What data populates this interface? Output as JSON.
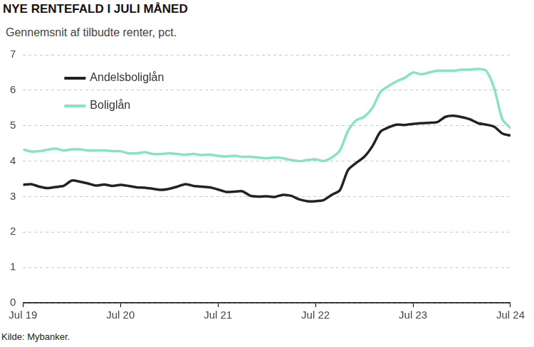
{
  "chart_data": {
    "type": "line",
    "title": "NYE RENTEFALD I JULI MÅNED",
    "subtitle": "Gennemsnit af tilbudte renter, pct.",
    "source": "Kilde: Mybanker.",
    "categories": [
      "Jul 19",
      null,
      null,
      null,
      null,
      null,
      null,
      null,
      null,
      null,
      null,
      null,
      "Jul 20",
      null,
      null,
      null,
      null,
      null,
      null,
      null,
      null,
      null,
      null,
      null,
      "Jul 21",
      null,
      null,
      null,
      null,
      null,
      null,
      null,
      null,
      null,
      null,
      null,
      "Jul 22",
      null,
      null,
      null,
      null,
      null,
      null,
      null,
      null,
      null,
      null,
      null,
      "Jul 23",
      null,
      null,
      null,
      null,
      null,
      null,
      null,
      null,
      null,
      null,
      null,
      "Jul 24"
    ],
    "series": [
      {
        "name": "Andelsboliglån",
        "color": "#222222",
        "values": [
          3.33,
          3.35,
          3.28,
          3.24,
          3.27,
          3.3,
          3.45,
          3.42,
          3.37,
          3.31,
          3.34,
          3.3,
          3.33,
          3.3,
          3.26,
          3.25,
          3.22,
          3.19,
          3.22,
          3.28,
          3.35,
          3.3,
          3.28,
          3.26,
          3.2,
          3.13,
          3.14,
          3.15,
          3.02,
          3.0,
          3.01,
          2.99,
          3.05,
          3.02,
          2.92,
          2.87,
          2.87,
          2.9,
          3.05,
          3.18,
          3.75,
          3.95,
          4.12,
          4.42,
          4.83,
          4.95,
          5.03,
          5.02,
          5.05,
          5.07,
          5.08,
          5.1,
          5.25,
          5.28,
          5.24,
          5.18,
          5.07,
          5.03,
          4.97,
          4.78,
          4.72
        ]
      },
      {
        "name": "Boliglån",
        "color": "#88e2c6",
        "values": [
          4.33,
          4.27,
          4.28,
          4.32,
          4.35,
          4.3,
          4.33,
          4.33,
          4.3,
          4.3,
          4.3,
          4.28,
          4.28,
          4.22,
          4.22,
          4.25,
          4.2,
          4.2,
          4.22,
          4.2,
          4.18,
          4.2,
          4.17,
          4.18,
          4.15,
          4.13,
          4.15,
          4.12,
          4.12,
          4.1,
          4.08,
          4.1,
          4.08,
          4.03,
          4.0,
          4.03,
          4.05,
          4.0,
          4.1,
          4.3,
          4.85,
          5.15,
          5.25,
          5.5,
          5.95,
          6.12,
          6.25,
          6.35,
          6.5,
          6.45,
          6.5,
          6.55,
          6.55,
          6.55,
          6.58,
          6.58,
          6.6,
          6.55,
          6.05,
          5.18,
          4.93
        ]
      }
    ],
    "ylim": [
      0,
      7
    ],
    "yticks": [
      0,
      1,
      2,
      3,
      4,
      5,
      6,
      7
    ],
    "grid": true,
    "legend": "upper left"
  }
}
